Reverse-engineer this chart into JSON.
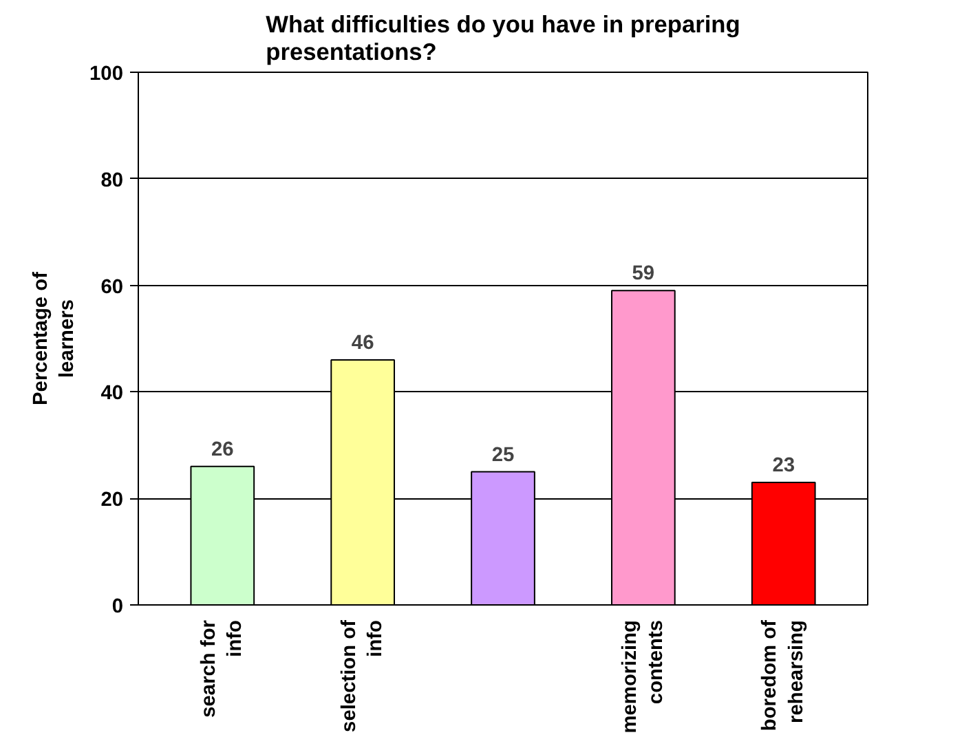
{
  "chart_data": {
    "type": "bar",
    "title": "What difficulties do you have in preparing\npresentations?",
    "ylabel": "Percentage of\nlearners",
    "categories": [
      "search for\ninfo",
      "selection of\ninfo",
      null,
      "memorizing\ncontents",
      "boredom of\nrehearsing"
    ],
    "values": [
      26,
      46,
      25,
      59,
      23
    ],
    "colors": [
      "#ccffcc",
      "#ffff99",
      "#cc99ff",
      "#ff99cc",
      "#ff0000"
    ],
    "ylim": [
      0,
      100
    ],
    "yticks": [
      0,
      20,
      40,
      60,
      80,
      100
    ],
    "grid": "y",
    "data_labels": true
  }
}
